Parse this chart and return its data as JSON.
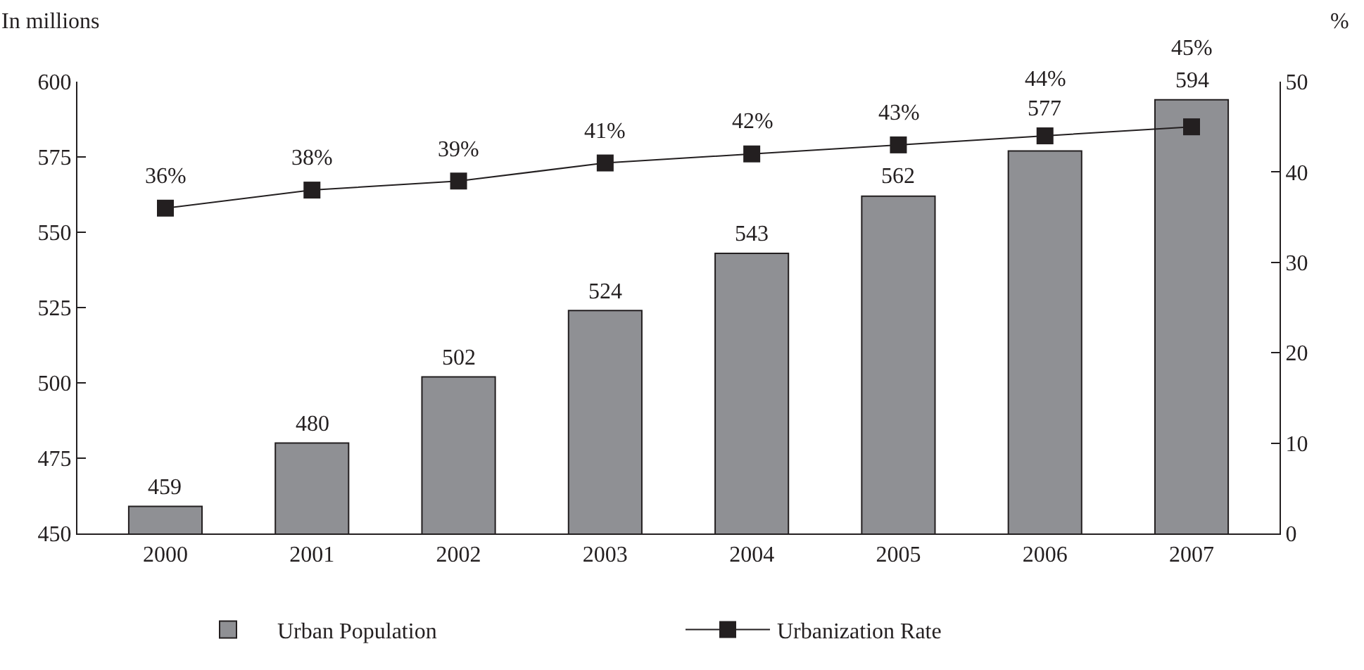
{
  "chart_data": {
    "type": "bar",
    "categories": [
      "2000",
      "2001",
      "2002",
      "2003",
      "2004",
      "2005",
      "2006",
      "2007"
    ],
    "ylabel": "In millions",
    "y2label": "%",
    "ylim": [
      450,
      600
    ],
    "yticks": [
      450,
      475,
      500,
      525,
      550,
      575,
      600
    ],
    "y2lim": [
      0,
      50
    ],
    "y2ticks": [
      0,
      10,
      20,
      30,
      40,
      50
    ],
    "grid": false,
    "legend": "bottom",
    "series": [
      {
        "name": "Urban Population",
        "color": "#8f9094",
        "values": [
          459,
          480,
          502,
          524,
          543,
          562,
          577,
          594
        ],
        "value_labels": [
          "459",
          "480",
          "502",
          "524",
          "543",
          "562",
          "577",
          "594"
        ]
      },
      {
        "name": "Urbanization Rate",
        "type": "line",
        "axis": "y2",
        "color": "#231f20",
        "marker": "square",
        "line_style": "solid",
        "values": [
          36,
          38,
          39,
          41,
          42,
          43,
          44,
          45
        ],
        "value_labels": [
          "36%",
          "38%",
          "39%",
          "41%",
          "42%",
          "43%",
          "44%",
          "45%"
        ]
      }
    ]
  }
}
